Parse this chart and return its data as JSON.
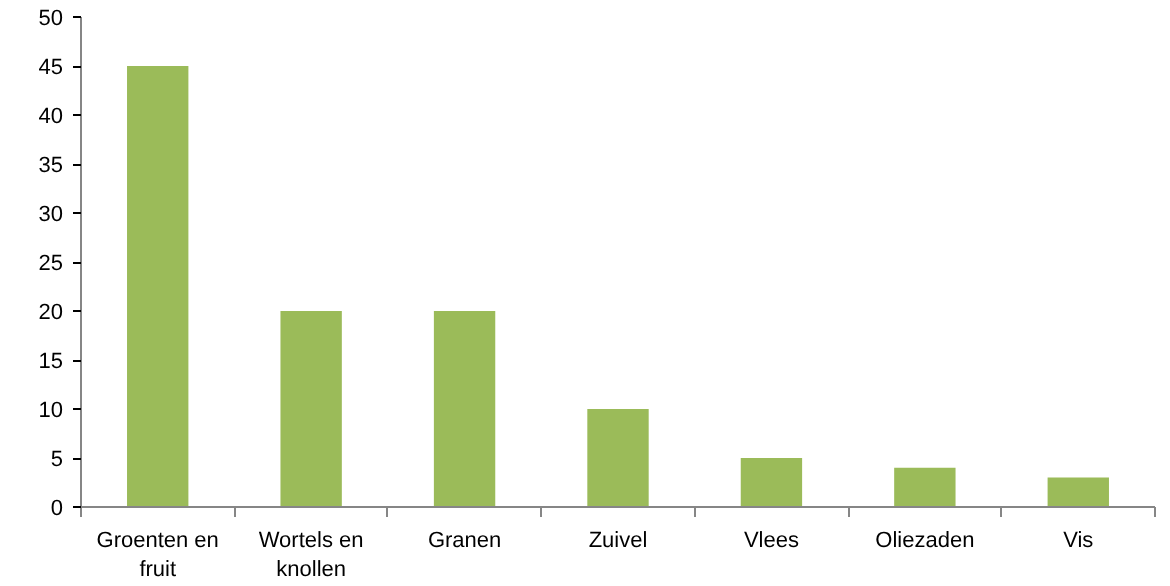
{
  "chart_data": {
    "type": "bar",
    "categories": [
      "Groenten en fruit",
      "Wortels en knollen",
      "Granen",
      "Zuivel",
      "Vlees",
      "Oliezaden",
      "Vis"
    ],
    "values": [
      45,
      20,
      20,
      10,
      5,
      4,
      3
    ],
    "color": "#9bbb59",
    "ylim": [
      0,
      50
    ],
    "yticks": [
      0,
      5,
      10,
      15,
      20,
      25,
      30,
      35,
      40,
      45,
      50
    ],
    "grid": false
  }
}
